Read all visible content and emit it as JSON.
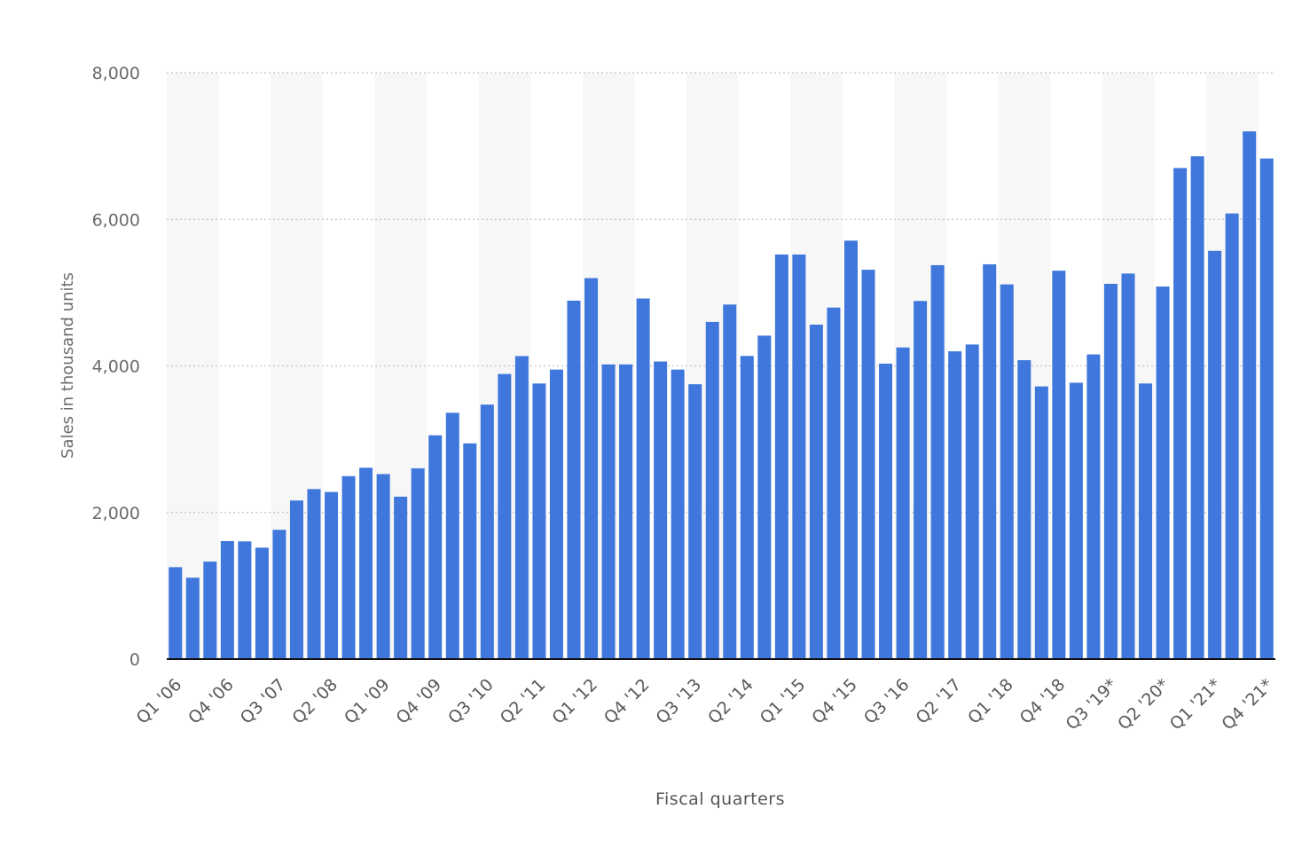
{
  "chart_data": {
    "type": "bar",
    "title": "",
    "xlabel": "Fiscal quarters",
    "ylabel": "Sales in thousand units",
    "ylim": [
      0,
      8000
    ],
    "yticks": [
      0,
      2000,
      4000,
      6000,
      8000
    ],
    "ytick_labels": [
      "0",
      "2,000",
      "4,000",
      "6,000",
      "8,000"
    ],
    "grid": "horizontal dotted",
    "bar_color": "#3f77dc",
    "band_color": "#f7f7f7",
    "categories": [
      "Q1 '06",
      "Q2 '06",
      "Q3 '06",
      "Q4 '06",
      "Q1 '07",
      "Q2 '07",
      "Q3 '07",
      "Q4 '07",
      "Q1 '08",
      "Q2 '08",
      "Q3 '08",
      "Q4 '08",
      "Q1 '09",
      "Q2 '09",
      "Q3 '09",
      "Q4 '09",
      "Q1 '10",
      "Q2 '10",
      "Q3 '10",
      "Q4 '10",
      "Q1 '11",
      "Q2 '11",
      "Q3 '11",
      "Q4 '11",
      "Q1 '12",
      "Q2 '12",
      "Q3 '12",
      "Q4 '12",
      "Q1 '13",
      "Q2 '13",
      "Q3 '13",
      "Q4 '13",
      "Q1 '14",
      "Q2 '14",
      "Q3 '14",
      "Q4 '14",
      "Q1 '15",
      "Q2 '15",
      "Q3 '15",
      "Q4 '15",
      "Q1 '16",
      "Q2 '16",
      "Q3 '16",
      "Q4 '16",
      "Q1 '17",
      "Q2 '17",
      "Q3 '17",
      "Q4 '17",
      "Q1 '18",
      "Q2 '18",
      "Q3 '18",
      "Q4 '18",
      "Q1 '19",
      "Q2 '19",
      "Q3 '19*",
      "Q4 '19*",
      "Q1 '20*",
      "Q2 '20*",
      "Q3 '20*",
      "Q4 '20*",
      "Q1 '21*",
      "Q2 '21*",
      "Q3 '21*",
      "Q4 '21*"
    ],
    "values": [
      1254,
      1110,
      1330,
      1610,
      1606,
      1520,
      1764,
      2164,
      2319,
      2280,
      2496,
      2611,
      2524,
      2216,
      2603,
      3053,
      3360,
      2943,
      3472,
      3890,
      4134,
      3760,
      3950,
      4890,
      5198,
      4020,
      4020,
      4920,
      4060,
      3950,
      3750,
      4600,
      4837,
      4136,
      4413,
      5520,
      5520,
      4563,
      4796,
      5709,
      5312,
      4031,
      4252,
      4886,
      5374,
      4199,
      4292,
      5386,
      5112,
      4078,
      3720,
      5299,
      3770,
      4157,
      5120,
      5260,
      3760,
      5083,
      6700,
      6860,
      5570,
      6080,
      7200,
      6830
    ],
    "visible_tick_labels": [
      "Q1 '06",
      "Q4 '06",
      "Q3 '07",
      "Q2 '08",
      "Q1 '09",
      "Q4 '09",
      "Q3 '10",
      "Q2 '11",
      "Q1 '12",
      "Q4 '12",
      "Q3 '13",
      "Q2 '14",
      "Q1 '15",
      "Q4 '15",
      "Q3 '16",
      "Q2 '17",
      "Q1 '18",
      "Q4 '18",
      "Q3 '19*",
      "Q2 '20*",
      "Q1 '21*",
      "Q4 '21*"
    ]
  }
}
